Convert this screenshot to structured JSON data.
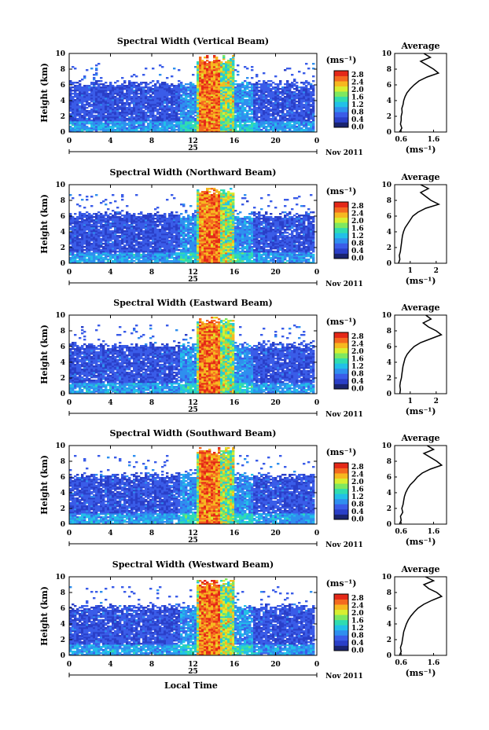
{
  "chart_data": {
    "type": "heatmap",
    "x_ticks": [
      "0",
      "4",
      "8",
      "12",
      "16",
      "20",
      "0"
    ],
    "y_ticks": [
      "0",
      "2",
      "4",
      "6",
      "8",
      "10"
    ],
    "ylabel": "Height (km)",
    "xlabel": "Local Time",
    "date_day": "25",
    "date_month": "Nov 2011",
    "colorbar_unit": "(ms⁻¹)",
    "colorbar_ticks": [
      "2.8",
      "2.4",
      "2.0",
      "1.6",
      "1.2",
      "0.8",
      "0.4",
      "0.0"
    ],
    "colorbar_colors": [
      "#1a2470",
      "#2a3fc8",
      "#3a5ce8",
      "#2f8fef",
      "#22c0e8",
      "#30dcb0",
      "#7ee860",
      "#d8ee30",
      "#f6b820",
      "#f46a20",
      "#e42818"
    ],
    "avg_title": "Average",
    "avg_xlabel": "(ms⁻¹)",
    "panels": [
      {
        "title": "Spectral Width (Vertical Beam)",
        "avg_ticks": [
          "0.6",
          "1.6"
        ],
        "avg_xlim": [
          0.4,
          2.0
        ],
        "avg_profile": [
          [
            0.0,
            0.55
          ],
          [
            0.5,
            0.62
          ],
          [
            1.0,
            0.58
          ],
          [
            1.5,
            0.6
          ],
          [
            2.0,
            0.6
          ],
          [
            2.5,
            0.63
          ],
          [
            3.0,
            0.62
          ],
          [
            3.5,
            0.66
          ],
          [
            4.0,
            0.68
          ],
          [
            4.5,
            0.72
          ],
          [
            5.0,
            0.78
          ],
          [
            5.5,
            0.88
          ],
          [
            6.0,
            1.0
          ],
          [
            6.5,
            1.15
          ],
          [
            7.0,
            1.4
          ],
          [
            7.5,
            1.75
          ],
          [
            8.0,
            1.6
          ],
          [
            8.5,
            1.4
          ],
          [
            9.0,
            1.2
          ],
          [
            9.5,
            1.5
          ],
          [
            10.0,
            1.3
          ]
        ]
      },
      {
        "title": "Spectral Width (Northward Beam)",
        "avg_ticks": [
          "1",
          "2"
        ],
        "avg_xlim": [
          0.4,
          2.4
        ],
        "avg_profile": [
          [
            0.0,
            0.55
          ],
          [
            0.5,
            0.6
          ],
          [
            1.0,
            0.58
          ],
          [
            1.5,
            0.62
          ],
          [
            2.0,
            0.64
          ],
          [
            2.5,
            0.66
          ],
          [
            3.0,
            0.68
          ],
          [
            3.5,
            0.7
          ],
          [
            4.0,
            0.74
          ],
          [
            4.5,
            0.8
          ],
          [
            5.0,
            0.9
          ],
          [
            5.5,
            1.0
          ],
          [
            6.0,
            1.1
          ],
          [
            6.5,
            1.3
          ],
          [
            7.0,
            1.6
          ],
          [
            7.5,
            2.1
          ],
          [
            8.0,
            1.8
          ],
          [
            8.5,
            1.6
          ],
          [
            9.0,
            1.4
          ],
          [
            9.5,
            1.7
          ],
          [
            10.0,
            1.4
          ]
        ]
      },
      {
        "title": "Spectral Width (Eastward Beam)",
        "avg_ticks": [
          "1",
          "2"
        ],
        "avg_xlim": [
          0.4,
          2.4
        ],
        "avg_profile": [
          [
            0.0,
            0.6
          ],
          [
            0.5,
            0.62
          ],
          [
            1.0,
            0.6
          ],
          [
            1.5,
            0.62
          ],
          [
            2.0,
            0.66
          ],
          [
            2.5,
            0.68
          ],
          [
            3.0,
            0.7
          ],
          [
            3.5,
            0.72
          ],
          [
            4.0,
            0.76
          ],
          [
            4.5,
            0.8
          ],
          [
            5.0,
            0.88
          ],
          [
            5.5,
            1.0
          ],
          [
            6.0,
            1.15
          ],
          [
            6.5,
            1.4
          ],
          [
            7.0,
            1.8
          ],
          [
            7.5,
            2.2
          ],
          [
            8.0,
            2.0
          ],
          [
            8.5,
            1.7
          ],
          [
            9.0,
            1.5
          ],
          [
            9.5,
            1.8
          ],
          [
            10.0,
            1.6
          ]
        ]
      },
      {
        "title": "Spectral Width (Southward Beam)",
        "avg_ticks": [
          "0.6",
          "1.6"
        ],
        "avg_xlim": [
          0.4,
          2.0
        ],
        "avg_profile": [
          [
            0.0,
            0.55
          ],
          [
            0.5,
            0.6
          ],
          [
            1.0,
            0.58
          ],
          [
            1.5,
            0.65
          ],
          [
            2.0,
            0.62
          ],
          [
            2.5,
            0.66
          ],
          [
            3.0,
            0.68
          ],
          [
            3.5,
            0.7
          ],
          [
            4.0,
            0.74
          ],
          [
            4.5,
            0.8
          ],
          [
            5.0,
            0.88
          ],
          [
            5.5,
            1.0
          ],
          [
            6.0,
            1.1
          ],
          [
            6.5,
            1.25
          ],
          [
            7.0,
            1.5
          ],
          [
            7.5,
            1.85
          ],
          [
            8.0,
            1.7
          ],
          [
            8.5,
            1.5
          ],
          [
            9.0,
            1.3
          ],
          [
            9.5,
            1.6
          ],
          [
            10.0,
            1.4
          ]
        ]
      },
      {
        "title": "Spectral Width (Westward Beam)",
        "avg_ticks": [
          "0.6",
          "1.6"
        ],
        "avg_xlim": [
          0.4,
          2.0
        ],
        "avg_profile": [
          [
            0.0,
            0.55
          ],
          [
            0.5,
            0.6
          ],
          [
            1.0,
            0.58
          ],
          [
            1.5,
            0.62
          ],
          [
            2.0,
            0.64
          ],
          [
            2.5,
            0.66
          ],
          [
            3.0,
            0.68
          ],
          [
            3.5,
            0.72
          ],
          [
            4.0,
            0.76
          ],
          [
            4.5,
            0.82
          ],
          [
            5.0,
            0.9
          ],
          [
            5.5,
            1.0
          ],
          [
            6.0,
            1.12
          ],
          [
            6.5,
            1.3
          ],
          [
            7.0,
            1.55
          ],
          [
            7.5,
            1.85
          ],
          [
            8.0,
            1.7
          ],
          [
            8.5,
            1.45
          ],
          [
            9.0,
            1.3
          ],
          [
            9.5,
            1.6
          ],
          [
            10.0,
            1.35
          ]
        ]
      }
    ]
  }
}
